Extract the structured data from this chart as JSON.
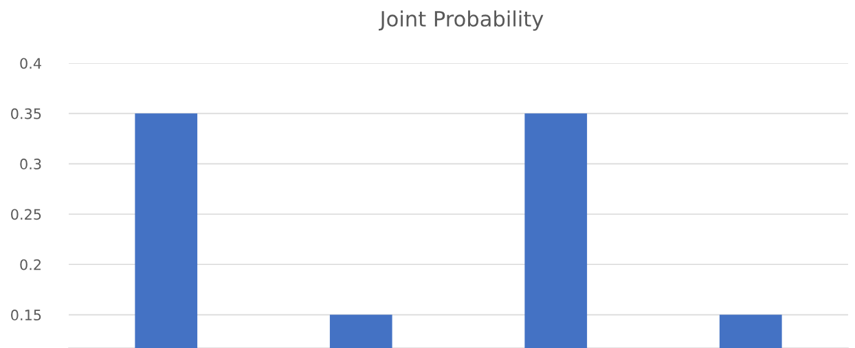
{
  "chart_data": {
    "type": "bar",
    "title": "Joint Probability",
    "categories": [
      null,
      null,
      null,
      null
    ],
    "values": [
      0.35,
      0.15,
      0.35,
      0.15
    ],
    "color": "#4472c4",
    "ylim": [
      0.117,
      0.4
    ],
    "yticks": [
      0.15,
      0.2,
      0.25,
      0.3,
      0.35,
      0.4
    ],
    "grid": "y"
  }
}
